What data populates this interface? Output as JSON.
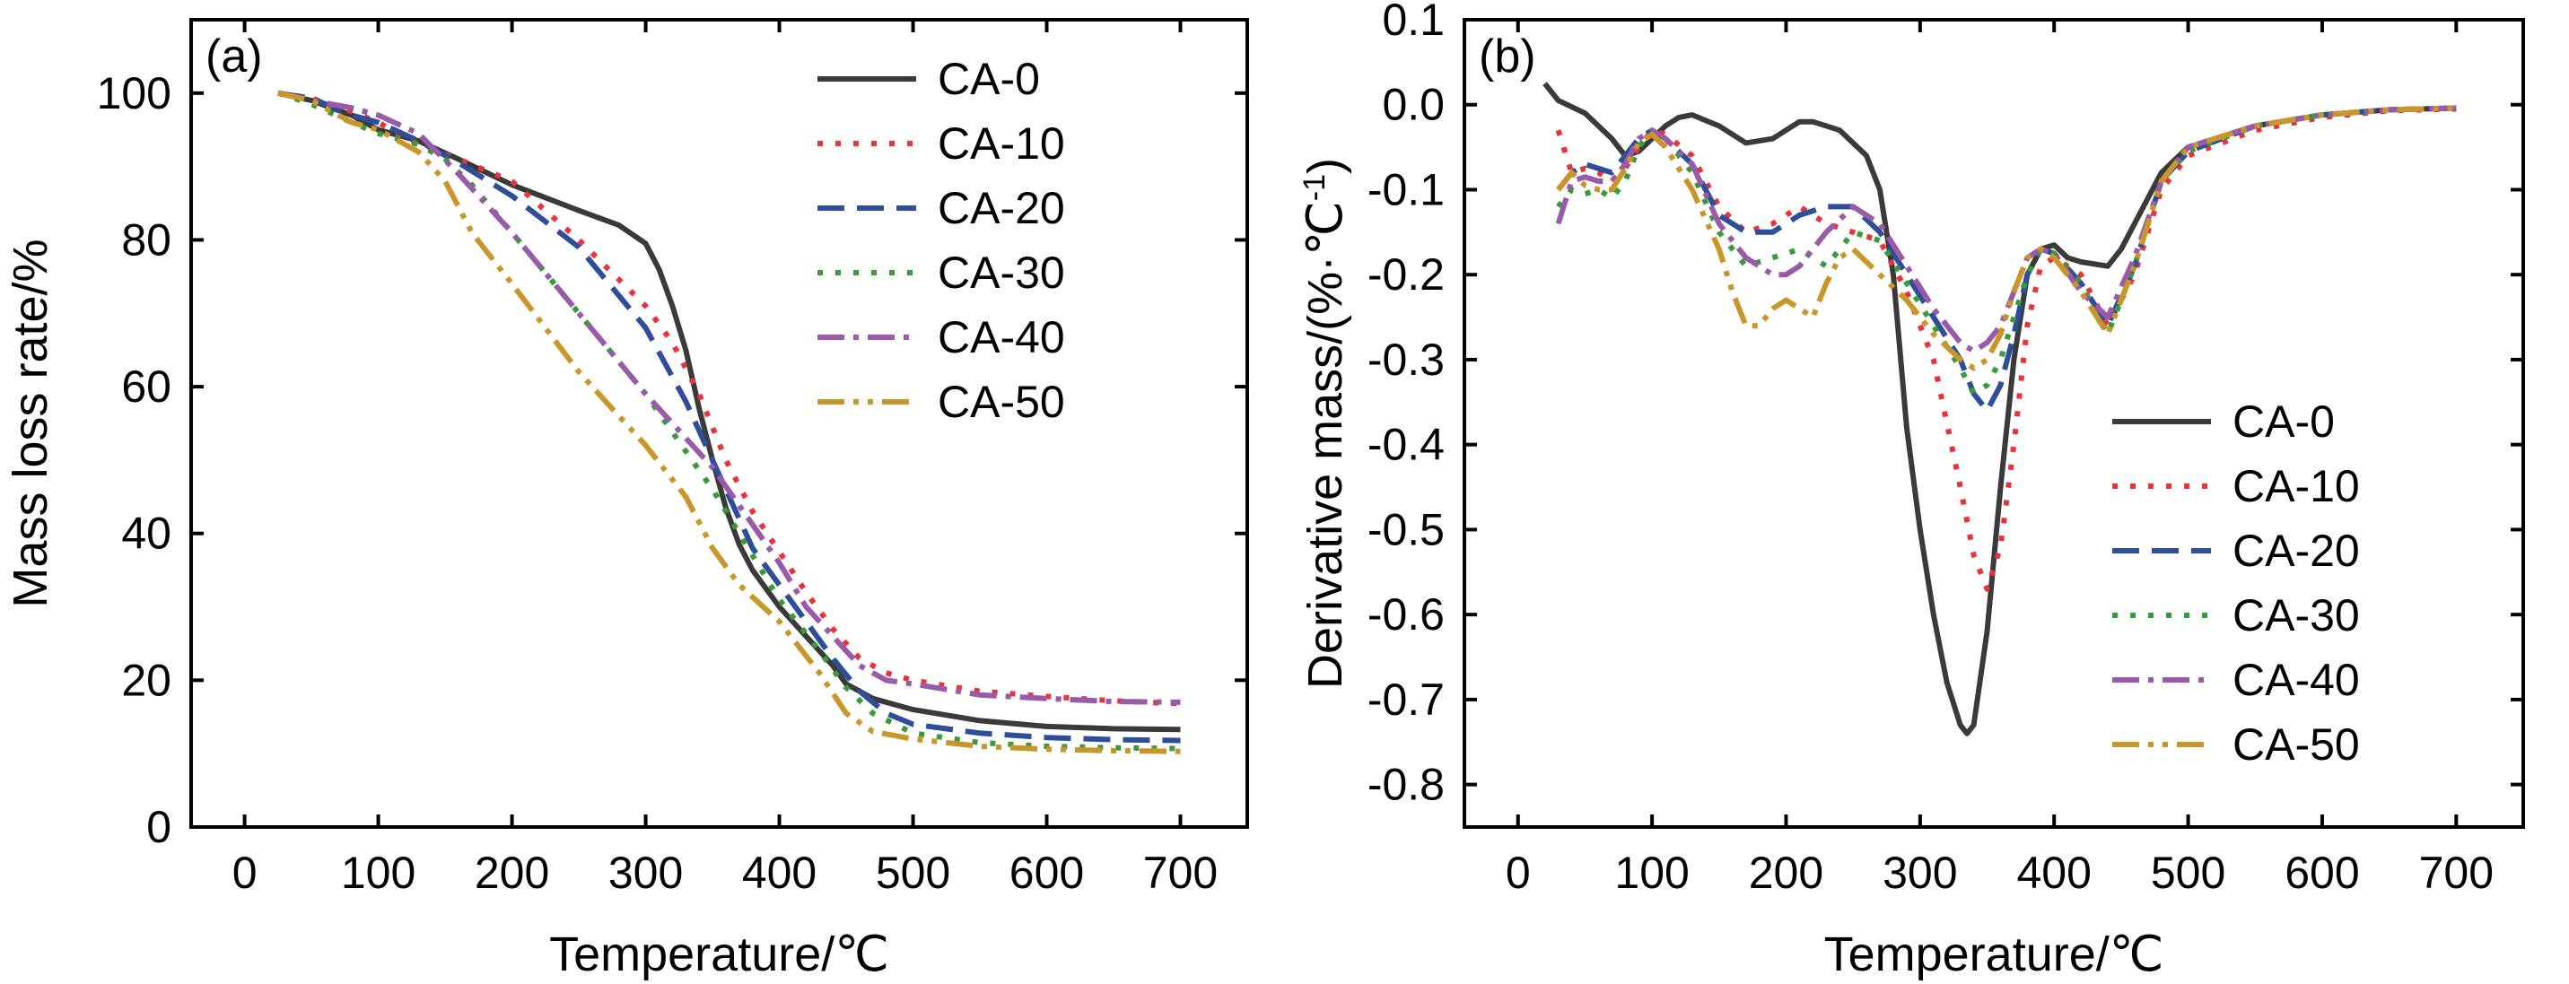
{
  "chart_data": [
    {
      "type": "line",
      "panel_label": "(a)",
      "xlabel": "Temperature/℃",
      "ylabel": "Mass loss rate/%",
      "xlim": [
        -40,
        750
      ],
      "ylim": [
        0,
        110
      ],
      "xticks": [
        0,
        100,
        200,
        300,
        400,
        500,
        600,
        700
      ],
      "yticks": [
        0,
        20,
        40,
        60,
        80,
        100
      ],
      "legend_position": "top-right",
      "series": [
        {
          "name": "CA-0",
          "color": "#3a3a3a",
          "dash": "solid",
          "x": [
            25,
            50,
            80,
            100,
            130,
            160,
            200,
            250,
            280,
            300,
            310,
            320,
            330,
            340,
            350,
            360,
            370,
            380,
            400,
            420,
            440,
            450,
            470,
            500,
            550,
            600,
            650,
            700
          ],
          "y": [
            100,
            99,
            97,
            95,
            93.5,
            91,
            87.5,
            84,
            82,
            79.5,
            76,
            71,
            65,
            57,
            50,
            43.5,
            38.5,
            35,
            30,
            26,
            22,
            19.5,
            17.5,
            16,
            14.5,
            13.7,
            13.4,
            13.3
          ]
        },
        {
          "name": "CA-10",
          "color": "#e8333b",
          "dash": "dot",
          "x": [
            25,
            50,
            80,
            100,
            130,
            160,
            200,
            250,
            300,
            320,
            340,
            360,
            380,
            400,
            420,
            440,
            460,
            480,
            500,
            550,
            600,
            650,
            700
          ],
          "y": [
            100,
            99.3,
            97.5,
            96,
            93,
            91,
            88,
            80,
            71,
            66,
            59,
            50,
            43,
            37.5,
            32,
            27,
            23,
            21,
            20,
            18.5,
            17.8,
            17.2,
            16.8
          ]
        },
        {
          "name": "CA-20",
          "color": "#2e4e9a",
          "dash": "dash",
          "x": [
            25,
            50,
            80,
            100,
            130,
            160,
            200,
            250,
            300,
            330,
            360,
            380,
            400,
            420,
            440,
            460,
            480,
            500,
            550,
            600,
            650,
            700
          ],
          "y": [
            100,
            99.3,
            97,
            96,
            93.5,
            90.5,
            86,
            79,
            68,
            58,
            46,
            38,
            33,
            28,
            23,
            18.5,
            15.5,
            14,
            12.8,
            12.2,
            11.9,
            11.8
          ]
        },
        {
          "name": "CA-30",
          "color": "#3a9a3a",
          "dash": "dot",
          "x": [
            25,
            50,
            80,
            100,
            130,
            150,
            170,
            200,
            250,
            300,
            350,
            400,
            430,
            450,
            470,
            500,
            550,
            600,
            650,
            700
          ],
          "y": [
            100,
            98.5,
            96,
            94.5,
            93,
            91,
            87.5,
            81,
            70,
            59,
            46,
            31,
            24,
            19,
            15.5,
            12.8,
            11.5,
            11,
            10.8,
            10.7
          ]
        },
        {
          "name": "CA-40",
          "color": "#9a5aaa",
          "dash": "dashdot",
          "x": [
            25,
            50,
            80,
            100,
            130,
            160,
            200,
            250,
            300,
            350,
            400,
            420,
            440,
            460,
            480,
            500,
            550,
            600,
            650,
            700
          ],
          "y": [
            100,
            99,
            98,
            97,
            94.5,
            89,
            81,
            70,
            59,
            49,
            36,
            30,
            26,
            22,
            20,
            19.5,
            18,
            17.5,
            17.1,
            17
          ]
        },
        {
          "name": "CA-50",
          "color": "#c9962a",
          "dash": "dashdotdot",
          "x": [
            25,
            50,
            80,
            100,
            130,
            150,
            170,
            200,
            250,
            300,
            330,
            350,
            370,
            400,
            430,
            450,
            470,
            500,
            550,
            600,
            650,
            700
          ],
          "y": [
            100,
            99,
            96,
            95,
            92,
            88,
            81,
            74,
            62,
            52,
            45,
            38,
            33,
            28,
            21,
            15.5,
            13,
            12,
            11,
            10.6,
            10.4,
            10.3
          ]
        }
      ]
    },
    {
      "type": "line",
      "panel_label": "(b)",
      "xlabel": "Temperature/℃",
      "ylabel": "Derivative mass/(%·℃",
      "ylabel_sup": "-1",
      "ylabel_close": ")",
      "xlim": [
        -40,
        750
      ],
      "ylim": [
        -0.85,
        0.1
      ],
      "xticks": [
        0,
        100,
        200,
        300,
        400,
        500,
        600,
        700
      ],
      "yticks": [
        0.1,
        0.0,
        -0.1,
        -0.2,
        -0.3,
        -0.4,
        -0.5,
        -0.6,
        -0.7,
        -0.8
      ],
      "ytick_labels": [
        "0.1",
        "0.0",
        "-0.1",
        "-0.2",
        "-0.3",
        "-0.4",
        "-0.5",
        "-0.6",
        "-0.7",
        "-0.8"
      ],
      "legend_position": "bottom-right",
      "series": [
        {
          "name": "CA-0",
          "color": "#3a3a3a",
          "dash": "solid",
          "x": [
            20,
            30,
            50,
            70,
            80,
            90,
            100,
            110,
            120,
            130,
            150,
            170,
            190,
            210,
            220,
            240,
            260,
            270,
            280,
            290,
            300,
            310,
            320,
            330,
            335,
            340,
            350,
            360,
            370,
            380,
            390,
            400,
            410,
            420,
            440,
            450,
            460,
            480,
            500,
            550,
            600,
            650,
            700
          ],
          "y": [
            0.025,
            0.005,
            -0.01,
            -0.04,
            -0.06,
            -0.055,
            -0.04,
            -0.025,
            -0.015,
            -0.012,
            -0.025,
            -0.045,
            -0.04,
            -0.02,
            -0.02,
            -0.03,
            -0.06,
            -0.1,
            -0.2,
            -0.38,
            -0.5,
            -0.6,
            -0.68,
            -0.73,
            -0.74,
            -0.73,
            -0.62,
            -0.45,
            -0.3,
            -0.2,
            -0.17,
            -0.165,
            -0.18,
            -0.185,
            -0.19,
            -0.17,
            -0.14,
            -0.08,
            -0.05,
            -0.025,
            -0.012,
            -0.006,
            -0.004
          ]
        },
        {
          "name": "CA-10",
          "color": "#e8333b",
          "dash": "dot",
          "x": [
            30,
            40,
            50,
            60,
            70,
            80,
            90,
            100,
            110,
            130,
            150,
            170,
            190,
            210,
            230,
            250,
            270,
            290,
            310,
            330,
            340,
            350,
            360,
            370,
            380,
            390,
            400,
            420,
            440,
            460,
            480,
            500,
            550,
            600,
            650,
            700
          ],
          "y": [
            -0.03,
            -0.08,
            -0.075,
            -0.08,
            -0.09,
            -0.075,
            -0.05,
            -0.03,
            -0.035,
            -0.06,
            -0.12,
            -0.15,
            -0.14,
            -0.12,
            -0.14,
            -0.15,
            -0.16,
            -0.22,
            -0.3,
            -0.45,
            -0.53,
            -0.57,
            -0.52,
            -0.4,
            -0.26,
            -0.19,
            -0.18,
            -0.2,
            -0.26,
            -0.2,
            -0.1,
            -0.06,
            -0.03,
            -0.015,
            -0.007,
            -0.005
          ]
        },
        {
          "name": "CA-20",
          "color": "#2e4e9a",
          "dash": "dash",
          "x": [
            30,
            40,
            50,
            60,
            70,
            80,
            90,
            100,
            110,
            130,
            150,
            170,
            190,
            210,
            230,
            250,
            270,
            290,
            310,
            330,
            340,
            350,
            360,
            370,
            380,
            390,
            400,
            420,
            440,
            460,
            480,
            500,
            550,
            600,
            650,
            700
          ],
          "y": [
            -0.1,
            -0.08,
            -0.07,
            -0.075,
            -0.08,
            -0.06,
            -0.04,
            -0.03,
            -0.04,
            -0.07,
            -0.13,
            -0.15,
            -0.15,
            -0.13,
            -0.12,
            -0.12,
            -0.15,
            -0.2,
            -0.25,
            -0.3,
            -0.34,
            -0.36,
            -0.33,
            -0.27,
            -0.2,
            -0.17,
            -0.175,
            -0.21,
            -0.26,
            -0.19,
            -0.09,
            -0.055,
            -0.025,
            -0.012,
            -0.006,
            -0.004
          ]
        },
        {
          "name": "CA-30",
          "color": "#3a9a3a",
          "dash": "dot",
          "x": [
            30,
            40,
            50,
            60,
            70,
            80,
            90,
            100,
            110,
            130,
            150,
            170,
            190,
            210,
            230,
            250,
            270,
            290,
            310,
            330,
            340,
            350,
            360,
            370,
            380,
            390,
            400,
            420,
            440,
            460,
            480,
            500,
            550,
            600,
            650,
            700
          ],
          "y": [
            -0.12,
            -0.1,
            -0.105,
            -0.1,
            -0.11,
            -0.09,
            -0.05,
            -0.03,
            -0.04,
            -0.08,
            -0.15,
            -0.19,
            -0.18,
            -0.17,
            -0.19,
            -0.15,
            -0.16,
            -0.21,
            -0.26,
            -0.31,
            -0.34,
            -0.33,
            -0.3,
            -0.25,
            -0.2,
            -0.17,
            -0.175,
            -0.21,
            -0.27,
            -0.19,
            -0.09,
            -0.055,
            -0.025,
            -0.012,
            -0.006,
            -0.004
          ]
        },
        {
          "name": "CA-40",
          "color": "#9a5aaa",
          "dash": "dashdot",
          "x": [
            30,
            40,
            50,
            60,
            70,
            80,
            90,
            100,
            110,
            130,
            150,
            170,
            190,
            200,
            210,
            230,
            250,
            270,
            290,
            310,
            330,
            340,
            350,
            360,
            370,
            380,
            390,
            400,
            420,
            440,
            460,
            480,
            500,
            550,
            600,
            650,
            700
          ],
          "y": [
            -0.14,
            -0.09,
            -0.085,
            -0.09,
            -0.09,
            -0.07,
            -0.04,
            -0.03,
            -0.04,
            -0.07,
            -0.14,
            -0.18,
            -0.2,
            -0.2,
            -0.19,
            -0.15,
            -0.12,
            -0.14,
            -0.19,
            -0.24,
            -0.28,
            -0.29,
            -0.28,
            -0.26,
            -0.22,
            -0.18,
            -0.17,
            -0.175,
            -0.22,
            -0.25,
            -0.18,
            -0.09,
            -0.05,
            -0.025,
            -0.012,
            -0.006,
            -0.004
          ]
        },
        {
          "name": "CA-50",
          "color": "#c9962a",
          "dash": "dashdotdot",
          "x": [
            30,
            40,
            50,
            60,
            70,
            80,
            90,
            100,
            110,
            130,
            150,
            160,
            170,
            180,
            190,
            200,
            210,
            220,
            230,
            240,
            250,
            270,
            290,
            310,
            330,
            340,
            350,
            360,
            370,
            380,
            390,
            400,
            420,
            440,
            460,
            480,
            500,
            550,
            600,
            650,
            700
          ],
          "y": [
            -0.1,
            -0.08,
            -0.095,
            -0.1,
            -0.1,
            -0.075,
            -0.045,
            -0.035,
            -0.05,
            -0.1,
            -0.17,
            -0.22,
            -0.26,
            -0.26,
            -0.24,
            -0.23,
            -0.24,
            -0.25,
            -0.21,
            -0.18,
            -0.17,
            -0.2,
            -0.23,
            -0.27,
            -0.3,
            -0.31,
            -0.3,
            -0.27,
            -0.22,
            -0.18,
            -0.17,
            -0.18,
            -0.22,
            -0.27,
            -0.19,
            -0.09,
            -0.05,
            -0.025,
            -0.012,
            -0.006,
            -0.004
          ]
        }
      ]
    }
  ]
}
